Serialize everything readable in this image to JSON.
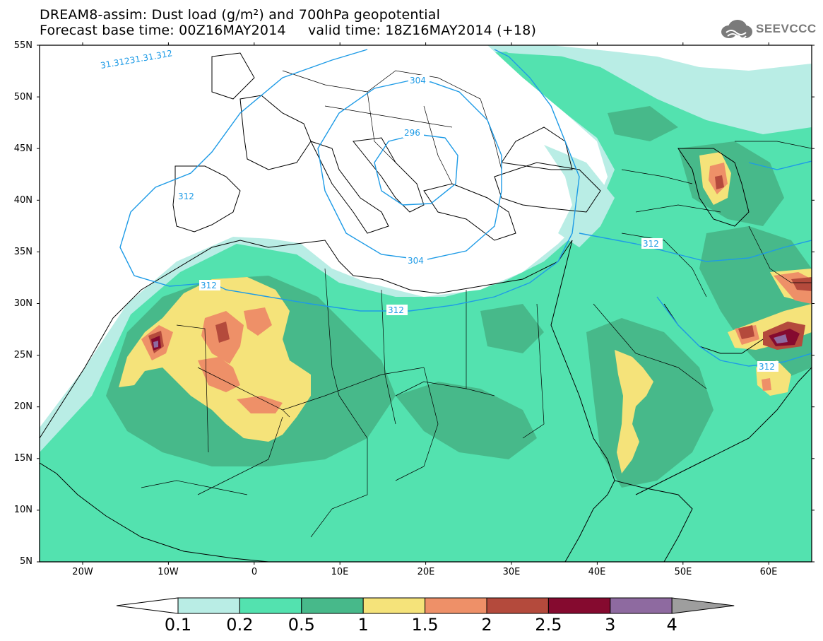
{
  "header": {
    "title_line1": "DREAM8-assim: Dust load (g/m²) and 700hPa geopotential",
    "title_line2": "Forecast base time: 00Z16MAY2014     valid time: 18Z16MAY2014 (+18)",
    "logo": "SEEVCCC"
  },
  "axes": {
    "lat_labels": [
      "55N",
      "50N",
      "45N",
      "40N",
      "35N",
      "30N",
      "25N",
      "20N",
      "15N",
      "10N",
      "5N"
    ],
    "lon_labels": [
      "20W",
      "10W",
      "0",
      "10E",
      "20E",
      "30E",
      "40E",
      "50E",
      "60E"
    ]
  },
  "contour_labels": [
    "31.31231.31.312",
    "304",
    "296",
    "312",
    "304",
    "312",
    "312",
    "312",
    "312"
  ],
  "colorbar": {
    "ticks": [
      "0.1",
      "0.2",
      "0.5",
      "1",
      "1.5",
      "2",
      "2.5",
      "3",
      "4"
    ],
    "colors": [
      "#b9ede5",
      "#53e2af",
      "#47b98a",
      "#f5e37a",
      "#ee9068",
      "#b44a3c",
      "#850a2f",
      "#8e6aa0",
      "#9e9e9e"
    ]
  }
}
